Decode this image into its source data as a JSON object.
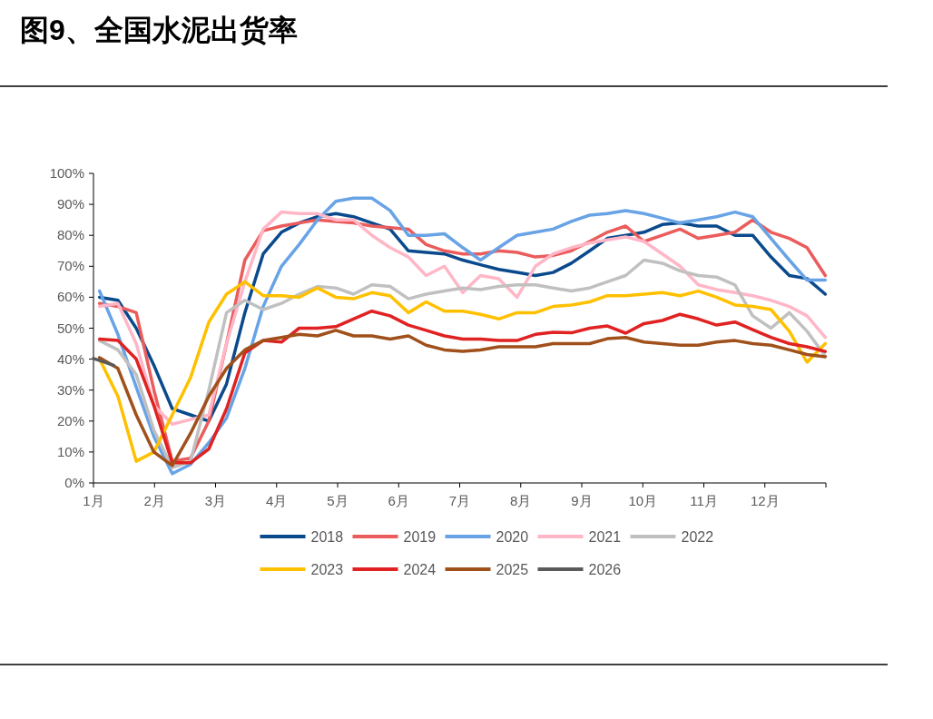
{
  "chart_data": {
    "type": "line",
    "title": "图9、全国水泥出货率",
    "x": [
      1.1,
      1.4,
      1.7,
      1.99,
      2.29,
      2.59,
      2.89,
      3.18,
      3.48,
      3.78,
      4.08,
      4.37,
      4.67,
      4.97,
      5.26,
      5.56,
      5.86,
      6.16,
      6.45,
      6.75,
      7.05,
      7.34,
      7.64,
      7.94,
      8.24,
      8.53,
      8.83,
      9.13,
      9.42,
      9.72,
      10.02,
      10.32,
      10.61,
      10.91,
      11.21,
      11.51,
      11.8,
      12.1,
      12.4,
      12.69,
      12.99
    ],
    "xlim": [
      1,
      13
    ],
    "xticks": [
      {
        "value": 1,
        "label": "1月"
      },
      {
        "value": 2,
        "label": "2月"
      },
      {
        "value": 3,
        "label": "3月"
      },
      {
        "value": 4,
        "label": "4月"
      },
      {
        "value": 5,
        "label": "5月"
      },
      {
        "value": 6,
        "label": "6月"
      },
      {
        "value": 7,
        "label": "7月"
      },
      {
        "value": 8,
        "label": "8月"
      },
      {
        "value": 9,
        "label": "9月"
      },
      {
        "value": 10,
        "label": "10月"
      },
      {
        "value": 11,
        "label": "11月"
      },
      {
        "value": 12,
        "label": "12月"
      },
      {
        "value": 13,
        "label": null
      }
    ],
    "ylim": [
      0,
      100
    ],
    "yticks": [
      {
        "value": 0,
        "label": "0%"
      },
      {
        "value": 10,
        "label": "10%"
      },
      {
        "value": 20,
        "label": "20%"
      },
      {
        "value": 30,
        "label": "30%"
      },
      {
        "value": 40,
        "label": "40%"
      },
      {
        "value": 50,
        "label": "50%"
      },
      {
        "value": 60,
        "label": "60%"
      },
      {
        "value": 70,
        "label": "70%"
      },
      {
        "value": 80,
        "label": "80%"
      },
      {
        "value": 90,
        "label": "90%"
      },
      {
        "value": 100,
        "label": "100%"
      }
    ],
    "grid": false,
    "legend": "bottom",
    "line_style": "solid",
    "marker": "none",
    "series": [
      {
        "name": "2018",
        "color": "#0a4a8c",
        "values": [
          60,
          59,
          50,
          38,
          24,
          22,
          20,
          32,
          55,
          74,
          81,
          84,
          86,
          87,
          86,
          84,
          82,
          75,
          74.5,
          74,
          72,
          70.5,
          69,
          68,
          67,
          68,
          71,
          75,
          79,
          80,
          81,
          83.5,
          84,
          83,
          83,
          80,
          80,
          73,
          67,
          66,
          61
        ]
      },
      {
        "name": "2019",
        "color": "#eb5c5c",
        "values": [
          58,
          57,
          55,
          30,
          7,
          8,
          20,
          45,
          72,
          81.5,
          83,
          84,
          85,
          84.5,
          84,
          83,
          82.5,
          82,
          77,
          75,
          74,
          74,
          75,
          74.5,
          73,
          73.5,
          75,
          78,
          81,
          83,
          78,
          80,
          82,
          79,
          80,
          81,
          85,
          81,
          79,
          76,
          67
        ]
      },
      {
        "name": "2020",
        "color": "#68a3e6",
        "values": [
          62,
          48,
          31,
          15,
          3,
          6,
          13,
          21,
          37,
          57,
          70,
          77,
          85,
          91,
          92,
          92,
          88,
          80,
          80,
          80.5,
          76,
          72,
          76,
          80,
          81,
          82,
          84.5,
          86.5,
          87,
          88,
          87,
          85.5,
          84,
          85,
          86,
          87.5,
          86,
          79,
          72,
          65.5,
          65.5
        ]
      },
      {
        "name": "2021",
        "color": "#ffb6c6",
        "values": [
          57,
          58,
          45,
          25,
          19,
          20.5,
          22,
          45,
          65,
          82,
          87.5,
          87,
          87,
          85,
          85,
          80,
          76,
          73,
          67,
          70,
          61.5,
          67,
          66,
          60,
          70,
          74,
          76,
          77.5,
          78.5,
          79.5,
          78,
          74,
          70,
          64,
          62.5,
          61.5,
          60.5,
          59,
          57,
          54,
          47
        ]
      },
      {
        "name": "2022",
        "color": "#c0c0c0",
        "values": [
          46,
          43,
          35,
          17,
          5,
          7,
          30,
          55,
          59,
          56,
          58,
          61,
          63.5,
          63,
          61,
          64,
          63.5,
          59.5,
          61,
          62,
          63,
          62.5,
          63.5,
          64,
          64,
          63,
          62,
          63,
          65,
          67,
          72,
          71,
          68.5,
          67,
          66.5,
          64,
          54,
          50,
          55,
          49,
          41
        ]
      },
      {
        "name": "2023",
        "color": "#ffc000",
        "values": [
          40,
          28,
          7,
          10,
          22,
          34,
          52,
          61,
          65,
          60.5,
          60.5,
          60,
          63,
          60,
          59.5,
          61.5,
          60.5,
          55,
          58.5,
          55.5,
          55.5,
          54.5,
          53,
          55,
          55,
          57,
          57.5,
          58.5,
          60.5,
          60.5,
          61,
          61.5,
          60.5,
          62,
          60,
          57.5,
          57,
          56,
          49,
          39,
          45
        ]
      },
      {
        "name": "2024",
        "color": "#e02222",
        "values": [
          46.5,
          46,
          40,
          25,
          6.5,
          6.5,
          11,
          24,
          42,
          46,
          45.5,
          50,
          50,
          50.5,
          53,
          55.5,
          54,
          51,
          49.3,
          47.5,
          46.5,
          46.5,
          46,
          46,
          48,
          48.7,
          48.5,
          50,
          50.7,
          48.4,
          51.5,
          52.5,
          54.5,
          53,
          51,
          52,
          49.5,
          47,
          45,
          44,
          42.5
        ]
      },
      {
        "name": "2025",
        "color": "#a0501a",
        "values": [
          40.5,
          37,
          22,
          10,
          5.6,
          16,
          28,
          37,
          43,
          46,
          47,
          48,
          47.5,
          49.3,
          47.5,
          47.5,
          46.5,
          47.5,
          44.5,
          43,
          42.5,
          43,
          44,
          44,
          44,
          45,
          45,
          45,
          46.6,
          47,
          45.5,
          45,
          44.5,
          44.5,
          45.5,
          46,
          45,
          44.5,
          43,
          41.5,
          40.8
        ]
      },
      {
        "name": "2026",
        "color": "#5a5a5a",
        "x": [
          1.0,
          1.33
        ],
        "values": [
          40.2,
          38
        ]
      }
    ]
  }
}
